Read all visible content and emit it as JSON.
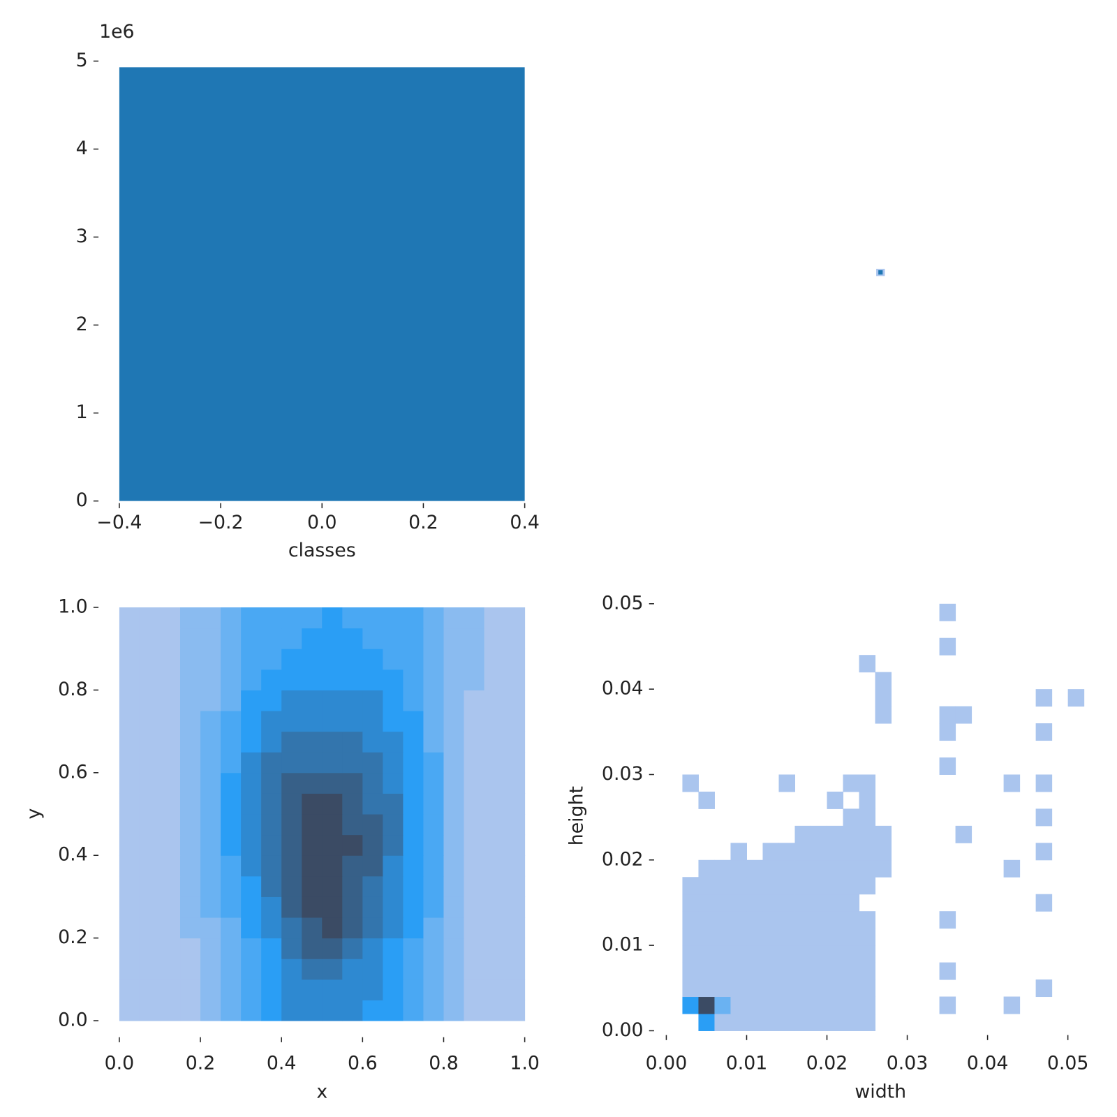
{
  "chart_data": [
    {
      "type": "histogram",
      "xlabel": "classes",
      "y_offset_label": "1e6",
      "color": "#1f77b4",
      "bins": [
        -0.4,
        0.4
      ],
      "values": [
        4.93
      ],
      "xlim": [
        -0.4,
        0.4
      ],
      "ylim": [
        0,
        5
      ],
      "xticks": [
        {
          "value": -0.4,
          "label": "−0.4"
        },
        {
          "value": -0.2,
          "label": "−0.2"
        },
        {
          "value": 0,
          "label": "0.0"
        },
        0.2,
        0.4
      ],
      "yticks": [
        0,
        1,
        2,
        3,
        4,
        5
      ]
    },
    {
      "type": "heatmap",
      "xlabel": "x",
      "ylabel": "y",
      "colors": [
        "#aac5ee",
        "#2a9ef5",
        "#3b4b64"
      ],
      "zlim": [
        1,
        9
      ],
      "xlim": [
        0,
        1
      ],
      "ylim": [
        0,
        1
      ],
      "xticks": [
        {
          "value": 0,
          "label": "0.0"
        },
        0.2,
        0.4,
        0.6,
        0.8,
        {
          "value": 1,
          "label": "1.0"
        }
      ],
      "yticks": [
        {
          "value": 0,
          "label": "0.0"
        },
        0.2,
        0.4,
        0.6,
        0.8,
        {
          "value": 1,
          "label": "1.0"
        }
      ],
      "x_edges": [
        0,
        0.05,
        0.1,
        0.15,
        0.2,
        0.25,
        0.3,
        0.35,
        0.4,
        0.45,
        0.5,
        0.55,
        0.6,
        0.65,
        0.7,
        0.75,
        0.8,
        0.85,
        0.9,
        0.95,
        1
      ],
      "y_edges": [
        0,
        0.05,
        0.1,
        0.15,
        0.2,
        0.25,
        0.3,
        0.35,
        0.4,
        0.45,
        0.5,
        0.55,
        0.6,
        0.65,
        0.7,
        0.75,
        0.8,
        0.85,
        0.9,
        0.95,
        1
      ],
      "z": [
        [
          1,
          1,
          1,
          1,
          2,
          3,
          4,
          5,
          6,
          6,
          6,
          6,
          5,
          5,
          4,
          3,
          2,
          1,
          1,
          1
        ],
        [
          1,
          1,
          1,
          1,
          2,
          3,
          4,
          5,
          6,
          6,
          6,
          6,
          6,
          5,
          4,
          3,
          2,
          1,
          1,
          1
        ],
        [
          1,
          1,
          1,
          1,
          2,
          3,
          4,
          5,
          6,
          7,
          7,
          6,
          6,
          5,
          4,
          3,
          2,
          1,
          1,
          1
        ],
        [
          1,
          1,
          1,
          1,
          2,
          3,
          4,
          5,
          7,
          8,
          8,
          7,
          6,
          5,
          4,
          3,
          2,
          1,
          1,
          1
        ],
        [
          1,
          1,
          1,
          2,
          2,
          3,
          5,
          6,
          7,
          8,
          9,
          8,
          7,
          6,
          5,
          3,
          2,
          1,
          1,
          1
        ],
        [
          1,
          1,
          1,
          2,
          3,
          4,
          5,
          6,
          8,
          9,
          9,
          8,
          7,
          6,
          5,
          4,
          2,
          1,
          1,
          1
        ],
        [
          1,
          1,
          1,
          2,
          3,
          4,
          5,
          7,
          8,
          9,
          9,
          8,
          7,
          6,
          5,
          4,
          2,
          1,
          1,
          1
        ],
        [
          1,
          1,
          1,
          2,
          3,
          4,
          6,
          7,
          8,
          9,
          9,
          8,
          8,
          6,
          5,
          4,
          2,
          1,
          1,
          1
        ],
        [
          1,
          1,
          1,
          2,
          3,
          5,
          6,
          7,
          8,
          9,
          9,
          9,
          8,
          7,
          5,
          4,
          2,
          1,
          1,
          1
        ],
        [
          1,
          1,
          1,
          2,
          3,
          5,
          6,
          7,
          8,
          9,
          9,
          8,
          8,
          7,
          5,
          4,
          2,
          1,
          1,
          1
        ],
        [
          1,
          1,
          1,
          2,
          3,
          5,
          6,
          7,
          8,
          9,
          9,
          8,
          7,
          7,
          5,
          4,
          2,
          1,
          1,
          1
        ],
        [
          1,
          1,
          1,
          2,
          3,
          5,
          6,
          7,
          8,
          8,
          8,
          8,
          7,
          6,
          5,
          4,
          2,
          1,
          1,
          1
        ],
        [
          1,
          1,
          1,
          2,
          3,
          4,
          6,
          7,
          7,
          7,
          7,
          7,
          7,
          6,
          5,
          4,
          2,
          1,
          1,
          1
        ],
        [
          1,
          1,
          1,
          2,
          3,
          4,
          5,
          6,
          7,
          7,
          7,
          7,
          6,
          6,
          5,
          3,
          2,
          1,
          1,
          1
        ],
        [
          1,
          1,
          1,
          2,
          3,
          4,
          5,
          6,
          6,
          6,
          6,
          6,
          6,
          5,
          5,
          3,
          2,
          1,
          1,
          1
        ],
        [
          1,
          1,
          1,
          2,
          2,
          3,
          5,
          5,
          6,
          6,
          6,
          6,
          6,
          5,
          4,
          3,
          2,
          1,
          1,
          1
        ],
        [
          1,
          1,
          1,
          2,
          2,
          3,
          4,
          5,
          5,
          5,
          5,
          5,
          5,
          5,
          4,
          3,
          2,
          2,
          1,
          1
        ],
        [
          1,
          1,
          1,
          2,
          2,
          3,
          4,
          4,
          5,
          5,
          5,
          5,
          5,
          4,
          4,
          3,
          2,
          2,
          1,
          1
        ],
        [
          1,
          1,
          1,
          2,
          2,
          3,
          4,
          4,
          4,
          5,
          5,
          5,
          4,
          4,
          4,
          3,
          2,
          2,
          1,
          1
        ],
        [
          1,
          1,
          1,
          2,
          2,
          3,
          4,
          4,
          4,
          4,
          5,
          4,
          4,
          4,
          4,
          3,
          2,
          2,
          1,
          1
        ]
      ]
    },
    {
      "type": "heatmap",
      "xlabel": "width",
      "ylabel": "height",
      "colors": [
        "#aac5ee",
        "#2a9ef5",
        "#3b4b64"
      ],
      "zlim": [
        1,
        9
      ],
      "xlim": [
        0,
        0.052
      ],
      "ylim": [
        0,
        0.0505
      ],
      "xticks": [
        {
          "value": 0,
          "label": "0.00"
        },
        0.01,
        0.02,
        0.03,
        0.04,
        0.05
      ],
      "yticks": [
        {
          "value": 0,
          "label": "0.00"
        },
        0.01,
        0.02,
        0.03,
        0.04,
        0.05
      ],
      "x_edges": [
        0,
        0.002,
        0.004,
        0.006,
        0.008,
        0.01,
        0.012,
        0.014,
        0.016,
        0.018,
        0.02,
        0.022,
        0.024,
        0.026,
        0.028,
        0.03,
        0.032,
        0.034,
        0.036,
        0.038,
        0.04,
        0.042,
        0.044,
        0.046,
        0.048,
        0.05,
        0.052
      ],
      "y_edges": [
        0,
        0.002,
        0.004,
        0.006,
        0.008,
        0.01,
        0.012,
        0.014,
        0.016,
        0.018,
        0.02,
        0.022,
        0.024,
        0.026,
        0.028,
        0.03,
        0.032,
        0.034,
        0.036,
        0.038,
        0.04,
        0.042,
        0.044,
        0.046,
        0.048,
        0.05
      ],
      "z": [
        [
          0,
          0,
          5,
          1,
          1,
          1,
          1,
          1,
          1,
          1,
          1,
          1,
          1,
          0,
          0,
          0,
          0,
          0,
          0,
          0,
          0,
          0,
          0,
          0,
          0,
          0
        ],
        [
          0,
          5,
          9,
          3,
          1,
          1,
          1,
          1,
          1,
          1,
          1,
          1,
          1,
          0,
          0,
          0,
          0,
          1,
          0,
          0,
          0,
          1,
          0,
          0,
          0,
          0
        ],
        [
          0,
          1,
          1,
          1,
          1,
          1,
          1,
          1,
          1,
          1,
          1,
          1,
          1,
          0,
          0,
          0,
          0,
          0,
          0,
          0,
          0,
          0,
          0,
          1,
          0,
          0
        ],
        [
          0,
          1,
          1,
          1,
          1,
          1,
          1,
          1,
          1,
          1,
          1,
          1,
          1,
          0,
          0,
          0,
          0,
          1,
          0,
          0,
          0,
          0,
          0,
          0,
          0,
          0
        ],
        [
          0,
          1,
          1,
          1,
          1,
          1,
          1,
          1,
          1,
          1,
          1,
          1,
          1,
          0,
          0,
          0,
          0,
          0,
          0,
          0,
          0,
          0,
          0,
          0,
          0,
          0
        ],
        [
          0,
          1,
          1,
          1,
          1,
          1,
          1,
          1,
          1,
          1,
          1,
          1,
          1,
          0,
          0,
          0,
          0,
          0,
          0,
          0,
          0,
          0,
          0,
          0,
          0,
          0
        ],
        [
          0,
          1,
          1,
          1,
          1,
          1,
          1,
          1,
          1,
          1,
          1,
          1,
          1,
          0,
          0,
          0,
          0,
          1,
          0,
          0,
          0,
          0,
          0,
          0,
          0,
          0
        ],
        [
          0,
          1,
          1,
          1,
          1,
          1,
          1,
          1,
          1,
          1,
          1,
          1,
          0,
          0,
          0,
          0,
          0,
          0,
          0,
          0,
          0,
          0,
          0,
          1,
          0,
          0
        ],
        [
          0,
          1,
          1,
          1,
          1,
          1,
          1,
          1,
          1,
          1,
          1,
          1,
          1,
          0,
          0,
          0,
          0,
          0,
          0,
          0,
          0,
          0,
          0,
          0,
          0,
          0
        ],
        [
          0,
          0,
          1,
          1,
          1,
          1,
          1,
          1,
          1,
          1,
          1,
          1,
          1,
          1,
          0,
          0,
          0,
          0,
          0,
          0,
          0,
          1,
          0,
          0,
          0,
          0
        ],
        [
          0,
          0,
          0,
          0,
          1,
          0,
          1,
          1,
          1,
          1,
          1,
          1,
          1,
          1,
          0,
          0,
          0,
          0,
          0,
          0,
          0,
          0,
          0,
          1,
          0,
          0
        ],
        [
          0,
          0,
          0,
          0,
          0,
          0,
          0,
          0,
          1,
          1,
          1,
          1,
          1,
          1,
          0,
          0,
          0,
          0,
          1,
          0,
          0,
          0,
          0,
          0,
          0,
          0
        ],
        [
          0,
          0,
          0,
          0,
          0,
          0,
          0,
          0,
          0,
          0,
          0,
          1,
          1,
          0,
          0,
          0,
          0,
          0,
          0,
          0,
          0,
          0,
          0,
          1,
          0,
          0
        ],
        [
          0,
          0,
          1,
          0,
          0,
          0,
          0,
          0,
          0,
          0,
          1,
          0,
          1,
          0,
          0,
          0,
          0,
          0,
          0,
          0,
          0,
          0,
          0,
          0,
          0,
          0
        ],
        [
          0,
          1,
          0,
          0,
          0,
          0,
          0,
          1,
          0,
          0,
          0,
          1,
          1,
          0,
          0,
          0,
          0,
          0,
          0,
          0,
          0,
          1,
          0,
          1,
          0,
          0
        ],
        [
          0,
          0,
          0,
          0,
          0,
          0,
          0,
          0,
          0,
          0,
          0,
          0,
          0,
          0,
          0,
          0,
          0,
          1,
          0,
          0,
          0,
          0,
          0,
          0,
          0,
          0
        ],
        [
          0,
          0,
          0,
          0,
          0,
          0,
          0,
          0,
          0,
          0,
          0,
          0,
          0,
          0,
          0,
          0,
          0,
          0,
          0,
          0,
          0,
          0,
          0,
          0,
          0,
          0
        ],
        [
          0,
          0,
          0,
          0,
          0,
          0,
          0,
          0,
          0,
          0,
          0,
          0,
          0,
          0,
          0,
          0,
          0,
          1,
          0,
          0,
          0,
          0,
          0,
          1,
          0,
          0
        ],
        [
          0,
          0,
          0,
          0,
          0,
          0,
          0,
          0,
          0,
          0,
          0,
          0,
          0,
          1,
          0,
          0,
          0,
          1,
          1,
          0,
          0,
          0,
          0,
          0,
          0,
          0
        ],
        [
          0,
          0,
          0,
          0,
          0,
          0,
          0,
          0,
          0,
          0,
          0,
          0,
          0,
          1,
          0,
          0,
          0,
          0,
          0,
          0,
          0,
          0,
          0,
          1,
          0,
          1
        ],
        [
          0,
          0,
          0,
          0,
          0,
          0,
          0,
          0,
          0,
          0,
          0,
          0,
          0,
          1,
          0,
          0,
          0,
          0,
          0,
          0,
          0,
          0,
          0,
          0,
          0,
          0
        ],
        [
          0,
          0,
          0,
          0,
          0,
          0,
          0,
          0,
          0,
          0,
          0,
          0,
          1,
          0,
          0,
          0,
          0,
          0,
          0,
          0,
          0,
          0,
          0,
          0,
          0,
          0
        ],
        [
          0,
          0,
          0,
          0,
          0,
          0,
          0,
          0,
          0,
          0,
          0,
          0,
          0,
          0,
          0,
          0,
          0,
          1,
          0,
          0,
          0,
          0,
          0,
          0,
          0,
          0
        ],
        [
          0,
          0,
          0,
          0,
          0,
          0,
          0,
          0,
          0,
          0,
          0,
          0,
          0,
          0,
          0,
          0,
          0,
          0,
          0,
          0,
          0,
          0,
          0,
          0,
          0,
          0
        ],
        [
          0,
          0,
          0,
          0,
          0,
          0,
          0,
          0,
          0,
          0,
          0,
          0,
          0,
          0,
          0,
          0,
          0,
          1,
          0,
          0,
          0,
          0,
          0,
          0,
          0,
          0
        ]
      ]
    }
  ]
}
